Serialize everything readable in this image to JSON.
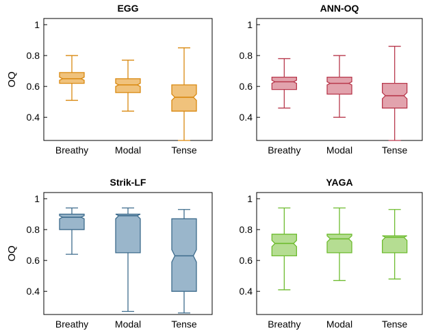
{
  "chart_data": [
    {
      "type": "box",
      "title": "EGG",
      "ylabel": "OQ",
      "ylim": [
        0.25,
        1.04
      ],
      "yticks": [
        "0.4",
        "0.6",
        "0.8",
        "1"
      ],
      "categories": [
        "Breathy",
        "Modal",
        "Tense"
      ],
      "color": "#d9880f",
      "fill": "#f0c27c",
      "boxes": [
        {
          "whisker_low": 0.51,
          "q1": 0.62,
          "median": 0.65,
          "q3": 0.69,
          "whisker_high": 0.8,
          "notch_low": 0.64,
          "notch_high": 0.66
        },
        {
          "whisker_low": 0.44,
          "q1": 0.56,
          "median": 0.61,
          "q3": 0.65,
          "whisker_high": 0.77,
          "notch_low": 0.6,
          "notch_high": 0.62
        },
        {
          "whisker_low": 0.25,
          "q1": 0.44,
          "median": 0.53,
          "q3": 0.61,
          "whisker_high": 0.85,
          "notch_low": 0.51,
          "notch_high": 0.55
        }
      ]
    },
    {
      "type": "box",
      "title": "ANN-OQ",
      "ylabel": "",
      "ylim": [
        0.25,
        1.04
      ],
      "yticks": [
        "0.4",
        "0.6",
        "0.8",
        "1"
      ],
      "categories": [
        "Breathy",
        "Modal",
        "Tense"
      ],
      "color": "#b8384c",
      "fill": "#e2a3ad",
      "boxes": [
        {
          "whisker_low": 0.46,
          "q1": 0.58,
          "median": 0.63,
          "q3": 0.66,
          "whisker_high": 0.78,
          "notch_low": 0.62,
          "notch_high": 0.64
        },
        {
          "whisker_low": 0.4,
          "q1": 0.55,
          "median": 0.62,
          "q3": 0.66,
          "whisker_high": 0.8,
          "notch_low": 0.61,
          "notch_high": 0.63
        },
        {
          "whisker_low": 0.25,
          "q1": 0.46,
          "median": 0.54,
          "q3": 0.62,
          "whisker_high": 0.86,
          "notch_low": 0.52,
          "notch_high": 0.56
        }
      ]
    },
    {
      "type": "box",
      "title": "Strik-LF",
      "ylabel": "OQ",
      "ylim": [
        0.25,
        1.04
      ],
      "yticks": [
        "0.4",
        "0.6",
        "0.8",
        "1"
      ],
      "categories": [
        "Breathy",
        "Modal",
        "Tense"
      ],
      "color": "#3d6b8c",
      "fill": "#9ab6cb",
      "boxes": [
        {
          "whisker_low": 0.64,
          "q1": 0.8,
          "median": 0.88,
          "q3": 0.9,
          "whisker_high": 0.94,
          "notch_low": 0.87,
          "notch_high": 0.89
        },
        {
          "whisker_low": 0.27,
          "q1": 0.65,
          "median": 0.89,
          "q3": 0.9,
          "whisker_high": 0.94,
          "notch_low": 0.87,
          "notch_high": 0.9
        },
        {
          "whisker_low": 0.26,
          "q1": 0.4,
          "median": 0.63,
          "q3": 0.87,
          "whisker_high": 0.93,
          "notch_low": 0.59,
          "notch_high": 0.67
        }
      ]
    },
    {
      "type": "box",
      "title": "YAGA",
      "ylabel": "",
      "ylim": [
        0.25,
        1.04
      ],
      "yticks": [
        "0.4",
        "0.6",
        "0.8",
        "1"
      ],
      "categories": [
        "Breathy",
        "Modal",
        "Tense"
      ],
      "color": "#6dbb2e",
      "fill": "#b5dd92",
      "boxes": [
        {
          "whisker_low": 0.41,
          "q1": 0.63,
          "median": 0.71,
          "q3": 0.77,
          "whisker_high": 0.94,
          "notch_low": 0.69,
          "notch_high": 0.73
        },
        {
          "whisker_low": 0.47,
          "q1": 0.65,
          "median": 0.74,
          "q3": 0.77,
          "whisker_high": 0.94,
          "notch_low": 0.72,
          "notch_high": 0.76
        },
        {
          "whisker_low": 0.48,
          "q1": 0.65,
          "median": 0.75,
          "q3": 0.76,
          "whisker_high": 0.93,
          "notch_low": 0.73,
          "notch_high": 0.76
        }
      ]
    }
  ]
}
